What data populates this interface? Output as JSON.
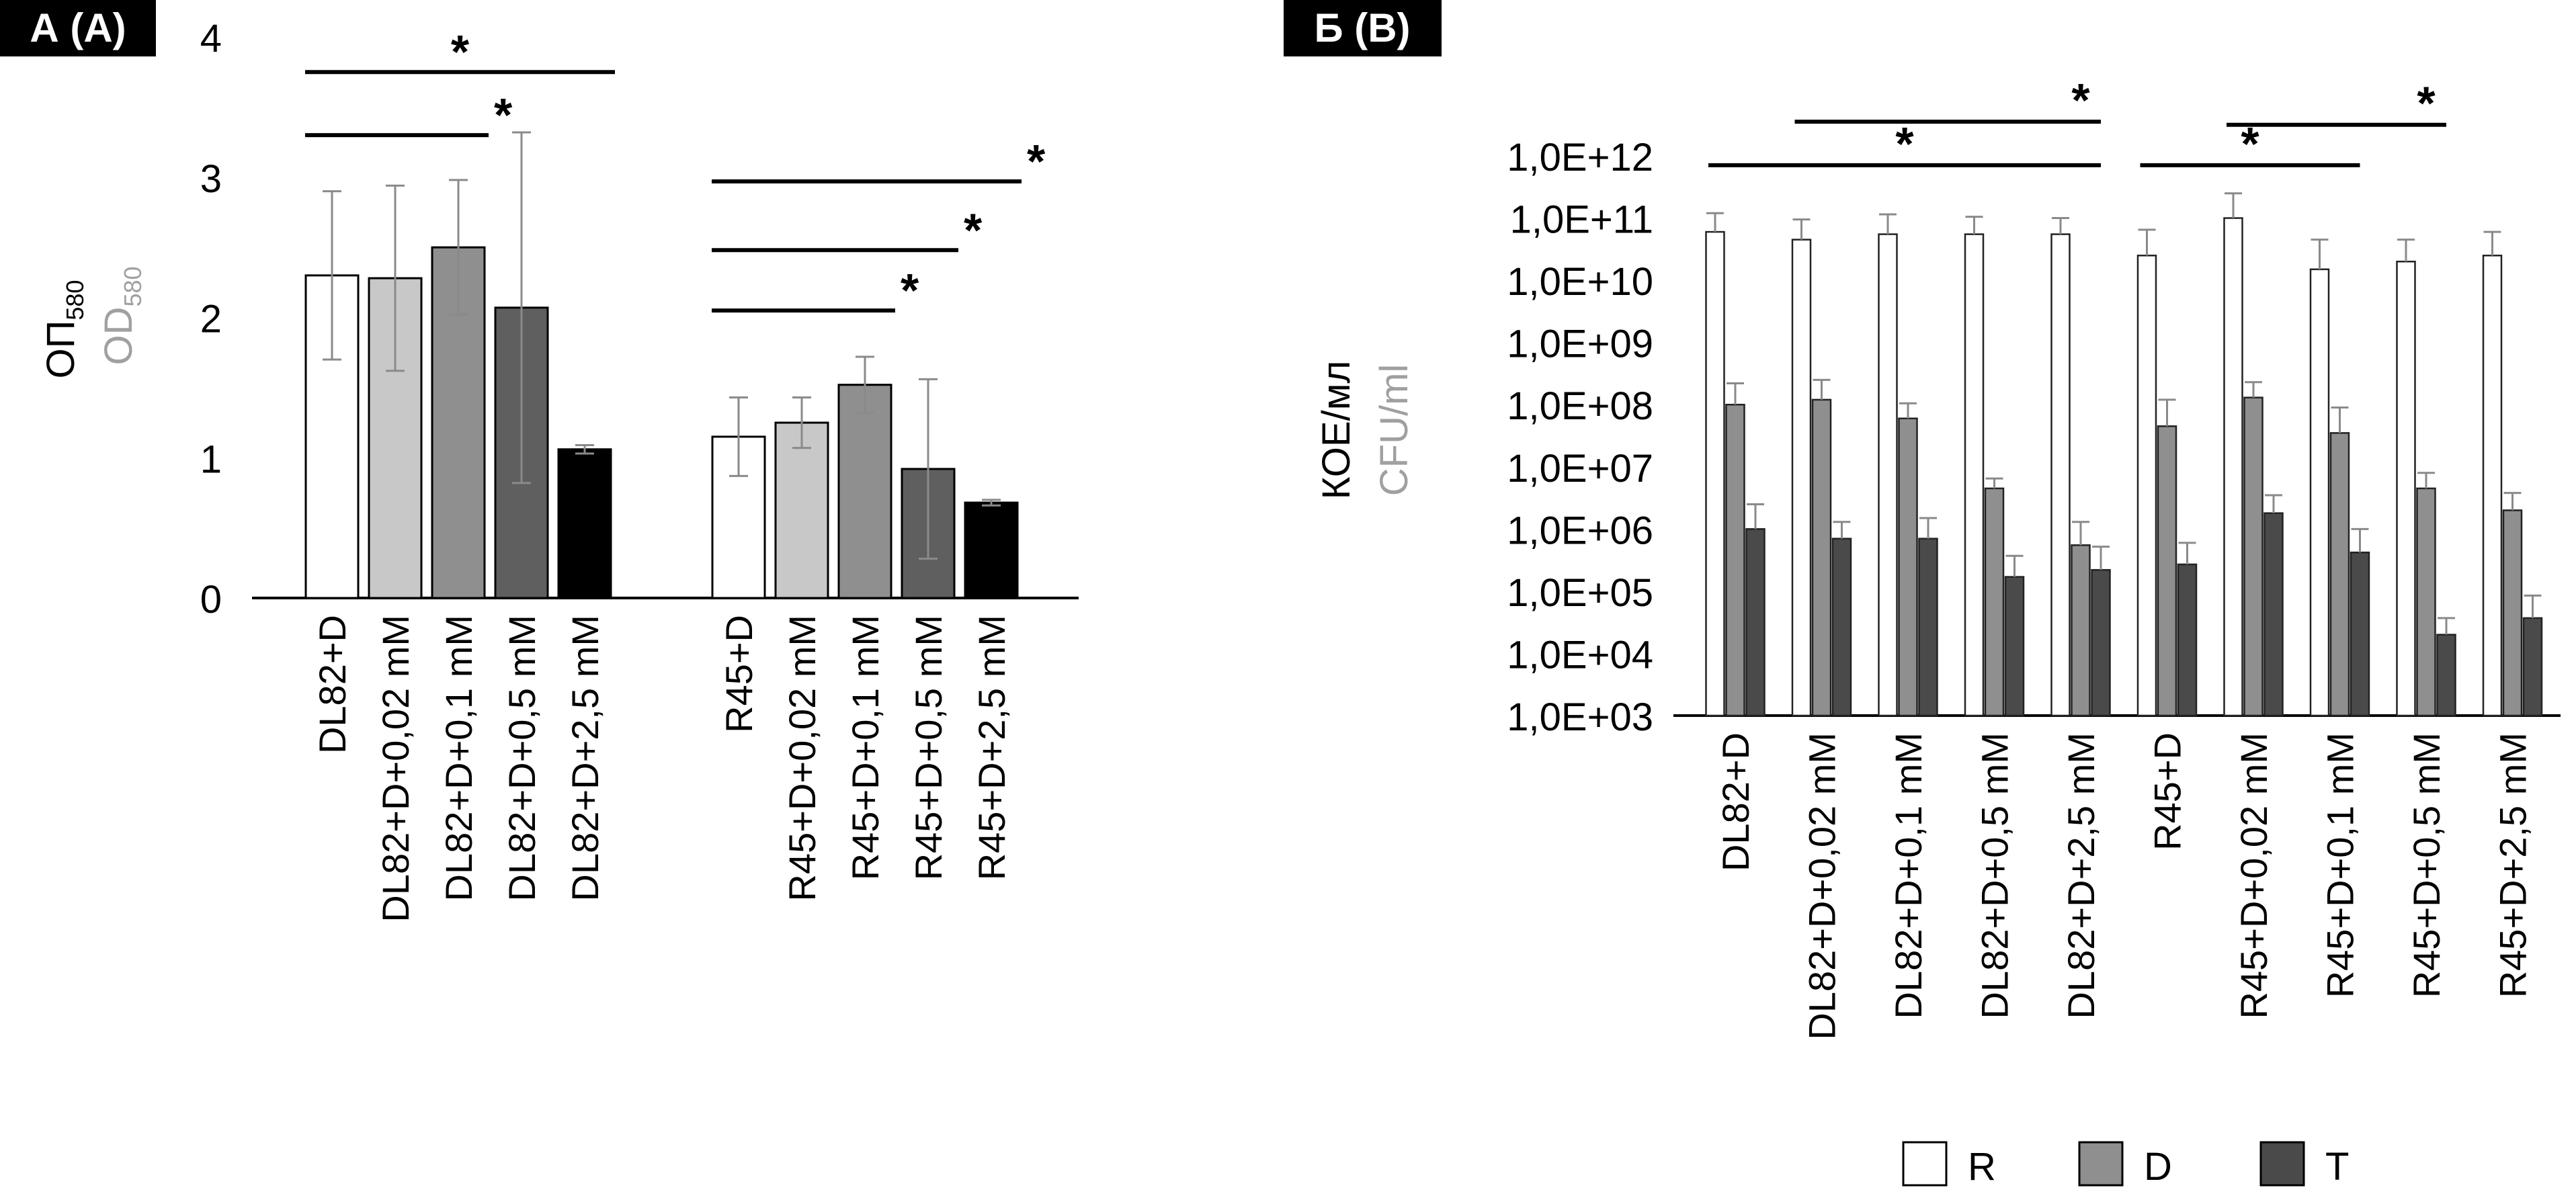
{
  "colors": {
    "R": "#ffffff",
    "D02": "#c8c8c8",
    "D": "#8f8f8f",
    "D05": "#5f5f5f",
    "T": "#000000",
    "Tbar": "#4a4a4a",
    "err": "#8a8a8a",
    "alt": "#a0a0a0"
  },
  "chart_data": [
    {
      "type": "bar",
      "panel_label": "А (А)",
      "ylabel_main": "ОП",
      "ylabel_main_sub": "580",
      "ylabel_alt": "OD",
      "ylabel_alt_sub": "580",
      "ylim": [
        0,
        4
      ],
      "yticks": [
        "0",
        "1",
        "2",
        "3",
        "4"
      ],
      "groups": [
        {
          "categories": [
            "DL82+D",
            "DL82+D+0,02 mM",
            "DL82+D+0,1 mM",
            "DL82+D+0,5 mM",
            "DL82+D+2,5 mM"
          ],
          "values": [
            2.3,
            2.28,
            2.5,
            2.07,
            1.06
          ],
          "errors": [
            0.6,
            0.66,
            0.48,
            1.25,
            0.03
          ],
          "fills": [
            "R",
            "D02",
            "D",
            "D05",
            "T"
          ]
        },
        {
          "categories": [
            "R45+D",
            "R45+D+0,02 mM",
            "R45+D+0,1 mM",
            "R45+D+0,5 mM",
            "R45+D+2,5 mM"
          ],
          "values": [
            1.15,
            1.25,
            1.52,
            0.92,
            0.68
          ],
          "errors": [
            0.28,
            0.18,
            0.2,
            0.64,
            0.02
          ],
          "fills": [
            "R",
            "D02",
            "D",
            "D05",
            "T"
          ]
        }
      ],
      "significance": [
        {
          "label": "*",
          "from": [
            0,
            0
          ],
          "to": [
            0,
            4
          ],
          "y": 3.75
        },
        {
          "label": "*",
          "from": [
            0,
            0
          ],
          "to": [
            0,
            2
          ],
          "y": 3.3
        },
        {
          "label": "*",
          "from": [
            1,
            0
          ],
          "to": [
            1,
            4
          ],
          "y": 2.97
        },
        {
          "label": "*",
          "from": [
            1,
            0
          ],
          "to": [
            1,
            3
          ],
          "y": 2.48
        },
        {
          "label": "*",
          "from": [
            1,
            0
          ],
          "to": [
            1,
            2
          ],
          "y": 2.05
        }
      ]
    },
    {
      "type": "bar",
      "scale": "log",
      "panel_label": "Б (В)",
      "ylabel_main": "КОЕ/мл",
      "ylabel_alt": "CFU/ml",
      "ylim_log10": [
        3,
        12
      ],
      "yticks": [
        "1,0E+03",
        "1,0E+04",
        "1,0E+05",
        "1,0E+06",
        "1,0E+07",
        "1,0E+08",
        "1,0E+09",
        "1,0E+10",
        "1,0E+11",
        "1,0E+12"
      ],
      "categories": [
        "DL82+D",
        "DL82+D+0,02 mM",
        "DL82+D+0,1 mM",
        "DL82+D+0,5 mM",
        "DL82+D+2,5 mM",
        "R45+D",
        "R45+D+0,02 mM",
        "R45+D+0,1 mM",
        "R45+D+0,5 mM",
        "R45+D+2,5 mM"
      ],
      "series": [
        {
          "name": "R",
          "values": [
            60000000000.0,
            45000000000.0,
            55000000000.0,
            55000000000.0,
            55000000000.0,
            25000000000.0,
            100000000000.0,
            15000000000.0,
            20000000000.0,
            25000000000.0
          ],
          "err_hi": [
            120000000000.0,
            95000000000.0,
            115000000000.0,
            105000000000.0,
            100000000000.0,
            65000000000.0,
            250000000000.0,
            45000000000.0,
            45000000000.0,
            60000000000.0
          ]
        },
        {
          "name": "D",
          "values": [
            100000000.0,
            120000000.0,
            60000000.0,
            4500000.0,
            550000.0,
            45000000.0,
            130000000.0,
            35000000.0,
            4500000.0,
            2000000.0
          ],
          "err_hi": [
            220000000.0,
            250000000.0,
            105000000.0,
            6500000.0,
            1300000.0,
            120000000.0,
            230000000.0,
            90000000.0,
            8000000.0,
            3800000.0
          ]
        },
        {
          "name": "T",
          "values": [
            1000000.0,
            700000.0,
            700000.0,
            170000.0,
            220000.0,
            270000.0,
            1800000.0,
            420000.0,
            20000.0,
            37000.0
          ],
          "err_hi": [
            2500000.0,
            1300000.0,
            1500000.0,
            370000.0,
            520000.0,
            600000.0,
            3500000.0,
            1000000.0,
            37000.0,
            85000.0
          ]
        }
      ],
      "significance": [
        {
          "label": "*",
          "from": 1,
          "to": 4,
          "y": 12.55
        },
        {
          "label": "*",
          "from": 0,
          "to": 4,
          "y": 11.85
        },
        {
          "label": "*",
          "from": 6,
          "to": 8,
          "y": 12.5
        },
        {
          "label": "*",
          "from": 5,
          "to": 7,
          "y": 11.85
        }
      ],
      "legend": {
        "placement": "bottom",
        "items": [
          "R",
          "D",
          "T"
        ]
      }
    }
  ]
}
